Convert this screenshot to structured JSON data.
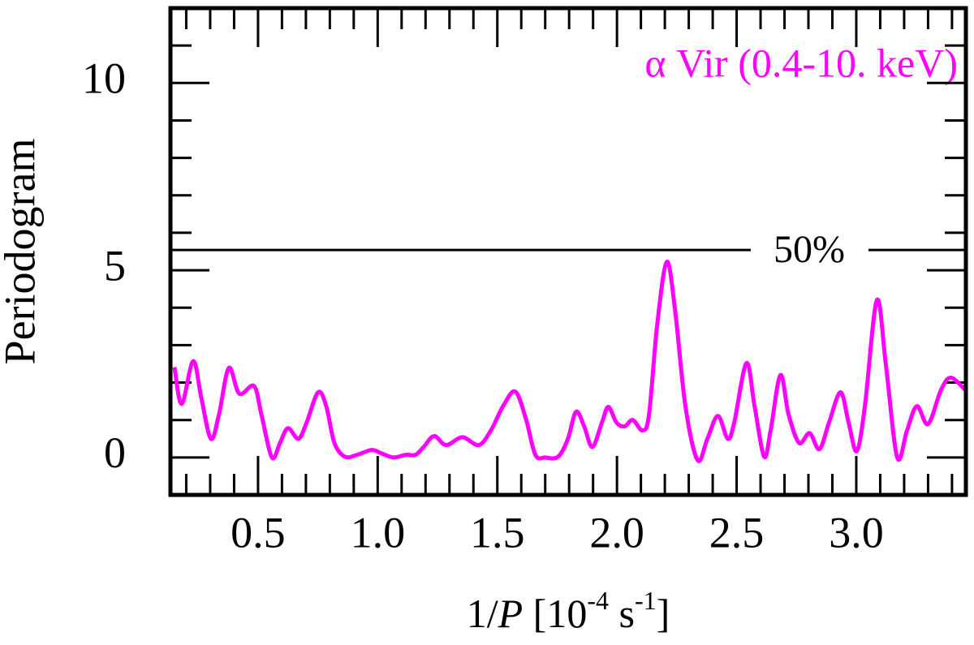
{
  "chart_data": {
    "type": "line",
    "annotation": "α Vir (0.4-10. keV)",
    "ylabel": "Periodogram",
    "xlabel": [
      "1/",
      "P",
      "  [10",
      "-4",
      " s",
      "-1",
      "]"
    ],
    "xlim": [
      0.134,
      3.458
    ],
    "ylim": [
      -1,
      12
    ],
    "xticks": [
      0.5,
      {
        "value": 1,
        "label": "1.0"
      },
      1.5,
      {
        "value": 2,
        "label": "2.0"
      },
      2.5,
      {
        "value": 3,
        "label": "3.0"
      }
    ],
    "yticks": [
      0,
      5,
      10
    ],
    "xticks_minor": [
      0.2,
      0.3,
      0.4,
      0.6,
      0.7,
      0.8,
      0.9,
      1.1,
      1.2,
      1.3,
      1.4,
      1.6,
      1.7,
      1.8,
      1.9,
      2.1,
      2.2,
      2.3,
      2.4,
      2.6,
      2.7,
      2.8,
      2.9,
      3.1,
      3.2,
      3.3,
      3.4
    ],
    "yticks_minor": [
      1,
      2,
      3,
      4,
      6,
      7,
      8,
      9,
      11
    ],
    "threshold": {
      "value": 5.54,
      "label": "50%",
      "color": "#000000"
    },
    "series": [
      {
        "name": "α Vir (0.4-10. keV)",
        "color": "#ff00ff",
        "x": [
          0.151,
          0.181,
          0.229,
          0.263,
          0.303,
          0.337,
          0.378,
          0.422,
          0.483,
          0.514,
          0.558,
          0.592,
          0.625,
          0.669,
          0.703,
          0.751,
          0.785,
          0.819,
          0.863,
          0.914,
          0.975,
          1.015,
          1.066,
          1.117,
          1.158,
          1.192,
          1.236,
          1.286,
          1.354,
          1.422,
          1.473,
          1.524,
          1.575,
          1.619,
          1.659,
          1.7,
          1.754,
          1.795,
          1.829,
          1.863,
          1.897,
          1.937,
          1.964,
          1.998,
          2.032,
          2.066,
          2.107,
          2.134,
          2.168,
          2.208,
          2.242,
          2.286,
          2.337,
          2.378,
          2.422,
          2.463,
          2.49,
          2.541,
          2.575,
          2.615,
          2.642,
          2.683,
          2.717,
          2.761,
          2.805,
          2.846,
          2.886,
          2.934,
          2.968,
          3.002,
          3.036,
          3.086,
          3.124,
          3.171,
          3.212,
          3.253,
          3.3,
          3.354,
          3.395,
          3.456
        ],
        "values": [
          2.41,
          1.43,
          2.57,
          1.59,
          0.5,
          1.15,
          2.39,
          1.7,
          1.91,
          1.15,
          0,
          0.39,
          0.78,
          0.5,
          0.93,
          1.74,
          1.37,
          0.39,
          0.02,
          0.07,
          0.2,
          0.11,
          0,
          0.07,
          0.07,
          0.28,
          0.57,
          0.33,
          0.54,
          0.33,
          0.72,
          1.37,
          1.76,
          1.04,
          0.07,
          0,
          0.02,
          0.5,
          1.22,
          0.83,
          0.28,
          0.93,
          1.35,
          0.93,
          0.83,
          1.0,
          0.72,
          1.15,
          3.54,
          5.22,
          3.98,
          1.37,
          -0.07,
          0.5,
          1.11,
          0.5,
          0.93,
          2.52,
          1.37,
          0.02,
          0.72,
          2.2,
          1.15,
          0.39,
          0.65,
          0.22,
          0.93,
          1.74,
          0.93,
          0.17,
          1.37,
          4.2,
          2.46,
          0,
          0.72,
          1.37,
          0.89,
          1.8,
          2.13,
          1.8
        ]
      }
    ]
  }
}
